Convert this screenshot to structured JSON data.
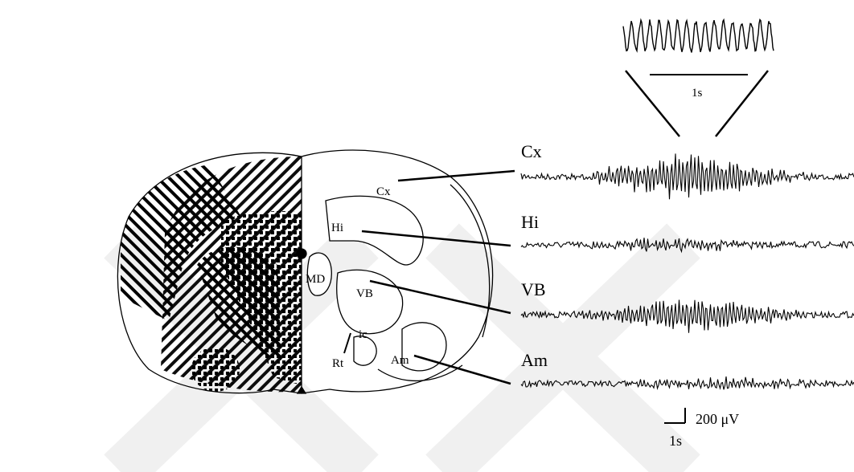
{
  "brain_section": {
    "labels": [
      "Cx",
      "Hi",
      "MD",
      "VB",
      "ic",
      "Rt",
      "Am"
    ]
  },
  "recordings": {
    "traces": [
      {
        "label": "Cx"
      },
      {
        "label": "Hi"
      },
      {
        "label": "VB"
      },
      {
        "label": "Am"
      }
    ]
  },
  "inset": {
    "scale_label": "1s"
  },
  "scale_bar": {
    "amplitude": "200 μV",
    "time": "1s"
  }
}
